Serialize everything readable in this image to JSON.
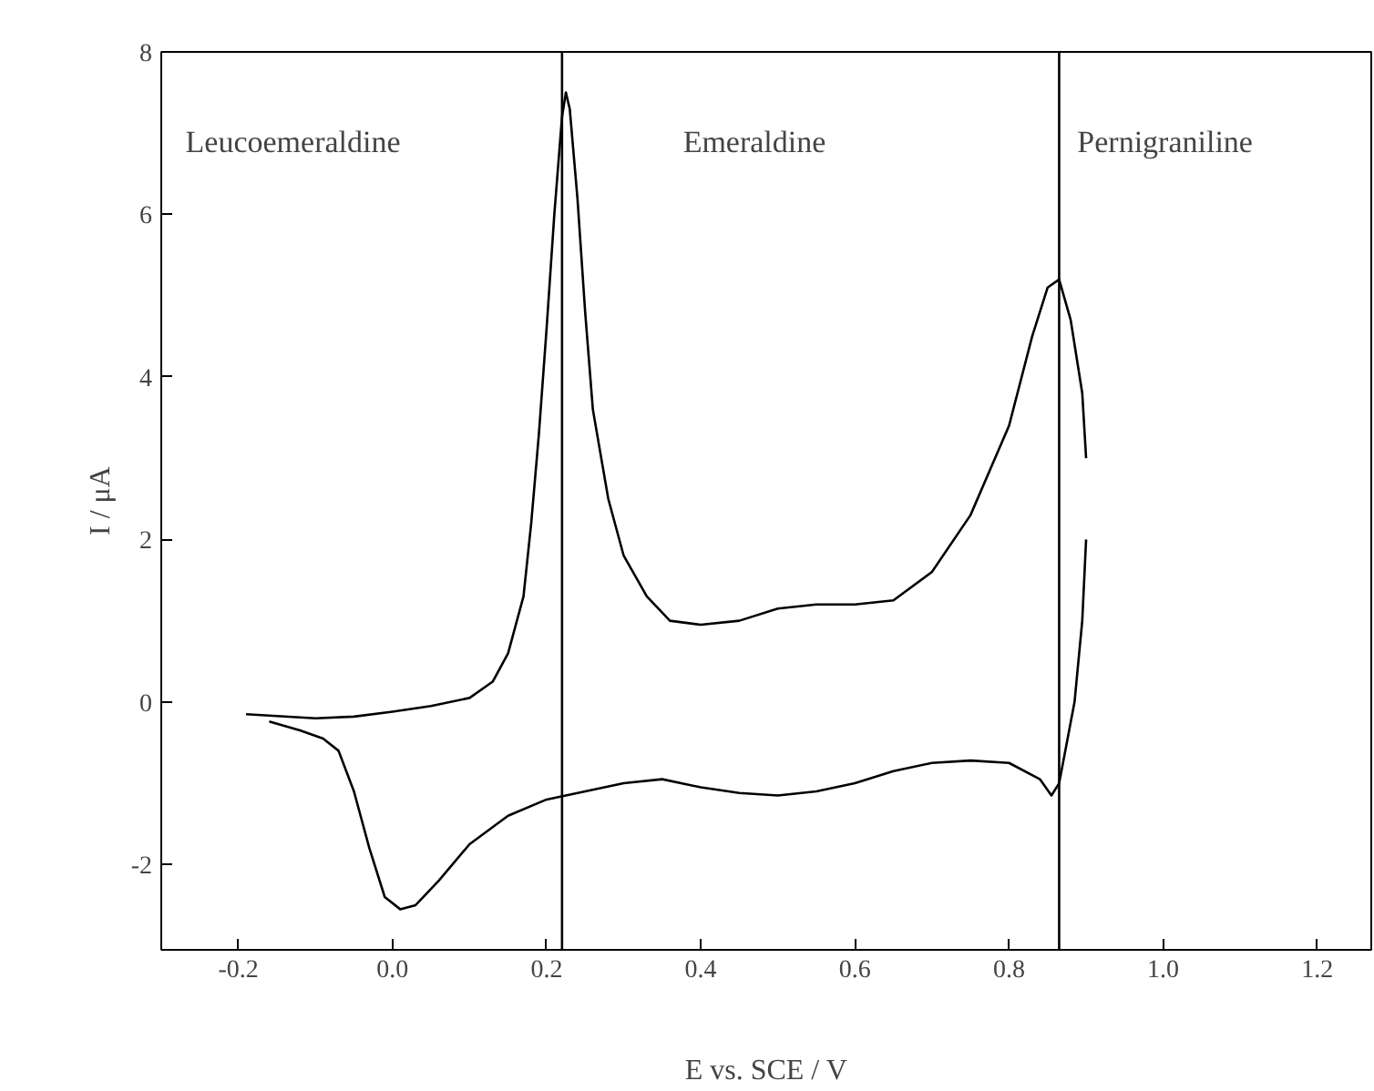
{
  "chart_data": {
    "type": "line",
    "xlabel": "E vs. SCE / V",
    "ylabel": "I / μA",
    "series": [
      {
        "color": "#000000",
        "x": [
          -0.19,
          -0.1,
          -0.05,
          0.0,
          0.05,
          0.1,
          0.13,
          0.15,
          0.17,
          0.18,
          0.19,
          0.2,
          0.21,
          0.22,
          0.225,
          0.23,
          0.24,
          0.25,
          0.26,
          0.28,
          0.3,
          0.33,
          0.36,
          0.4,
          0.45,
          0.5,
          0.55,
          0.6,
          0.65,
          0.7,
          0.75,
          0.8,
          0.83,
          0.85,
          0.865,
          0.88,
          0.895,
          0.9
        ],
        "values": [
          -0.15,
          -0.2,
          -0.18,
          -0.12,
          -0.05,
          0.05,
          0.25,
          0.6,
          1.3,
          2.2,
          3.3,
          4.6,
          6.0,
          7.2,
          7.5,
          7.3,
          6.2,
          4.8,
          3.6,
          2.5,
          1.8,
          1.3,
          1.0,
          0.95,
          1.0,
          1.15,
          1.2,
          1.2,
          1.25,
          1.6,
          2.3,
          3.4,
          4.5,
          5.1,
          5.2,
          4.7,
          3.8,
          3.0
        ]
      },
      {
        "color": "#000000",
        "x": [
          0.9,
          0.895,
          0.885,
          0.875,
          0.865,
          0.855,
          0.84,
          0.8,
          0.75,
          0.7,
          0.65,
          0.6,
          0.55,
          0.5,
          0.45,
          0.4,
          0.35,
          0.3,
          0.25,
          0.2,
          0.15,
          0.1,
          0.06,
          0.03,
          0.01,
          -0.01,
          -0.03,
          -0.05,
          -0.07,
          -0.09,
          -0.12,
          -0.16
        ],
        "values": [
          2.0,
          1.0,
          0.0,
          -0.5,
          -1.0,
          -1.15,
          -0.95,
          -0.75,
          -0.72,
          -0.75,
          -0.85,
          -1.0,
          -1.1,
          -1.15,
          -1.12,
          -1.05,
          -0.95,
          -1.0,
          -1.1,
          -1.2,
          -1.4,
          -1.75,
          -2.2,
          -2.5,
          -2.55,
          -2.4,
          -1.8,
          -1.1,
          -0.6,
          -0.45,
          -0.35,
          -0.24
        ]
      }
    ],
    "xlim": [
      -0.3,
      1.27
    ],
    "ylim": [
      -3.05,
      8
    ],
    "xticks": [
      -0.2,
      {
        "value": 0.0,
        "label": "0.0"
      },
      0.2,
      0.4,
      0.6,
      0.8,
      {
        "value": 1.0,
        "label": "1.0"
      },
      1.2
    ],
    "yticks": [
      -2,
      0,
      2,
      4,
      6,
      8
    ],
    "ref_lines": [
      {
        "axis": "x",
        "value": 0.22,
        "color": "#000000"
      },
      {
        "axis": "x",
        "value": 0.865,
        "color": "#000000"
      }
    ],
    "annotations": [
      "Leucoemeraldine",
      "Emeraldine",
      "Pernigraniline"
    ],
    "grid": false,
    "line_style": "solid",
    "marker": "none"
  }
}
